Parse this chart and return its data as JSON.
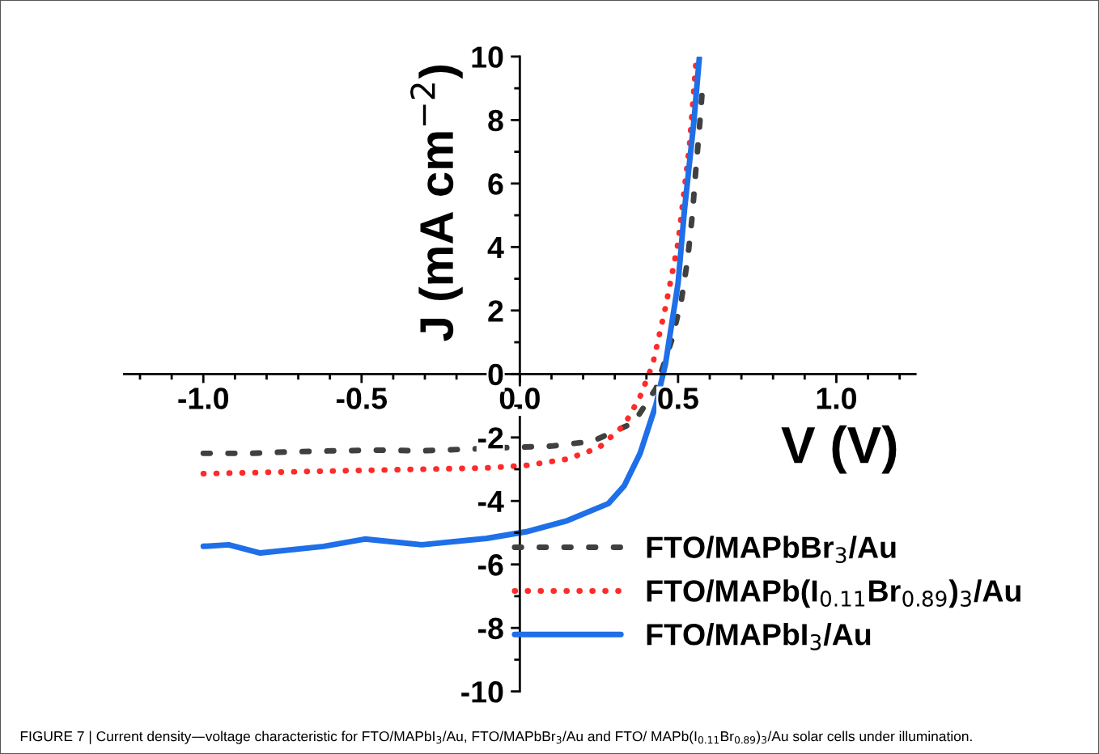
{
  "chart_data": {
    "type": "line",
    "xlabel": "V (V)",
    "ylabel": "J (mA cm$^{−2}$)",
    "xlim": [
      -1.25,
      1.25
    ],
    "ylim": [
      -10,
      10
    ],
    "xticks": [
      {
        "value": -1.0,
        "label": "-1.0"
      },
      {
        "value": -0.5,
        "label": "-0.5"
      },
      {
        "value": 0.0,
        "label": "0.0"
      },
      {
        "value": 0.5,
        "label": "0.5"
      },
      {
        "value": 1.0,
        "label": "1.0"
      }
    ],
    "yticks": [
      {
        "value": -10,
        "label": "-10"
      },
      {
        "value": -8,
        "label": "-8"
      },
      {
        "value": -6,
        "label": "-6"
      },
      {
        "value": -4,
        "label": "-4"
      },
      {
        "value": -2,
        "label": "-2"
      },
      {
        "value": 0,
        "label": "0"
      },
      {
        "value": 2,
        "label": "2"
      },
      {
        "value": 4,
        "label": "4"
      },
      {
        "value": 6,
        "label": "6"
      },
      {
        "value": 8,
        "label": "8"
      },
      {
        "value": 10,
        "label": "10"
      }
    ],
    "grid": false,
    "legend": "bottom right",
    "marker": "none",
    "series": [
      {
        "name": "FTO/MAPbBr$_{3}$/Au",
        "color": "#404040",
        "line_style": "dashed",
        "x": [
          -1.0,
          -0.85,
          -0.72,
          -0.59,
          -0.44,
          -0.31,
          -0.17,
          -0.04,
          0.1,
          0.23,
          0.36,
          0.43,
          0.48,
          0.51,
          0.53,
          0.545,
          0.555,
          0.567,
          0.577
        ],
        "values": [
          -2.5,
          -2.5,
          -2.45,
          -2.42,
          -2.4,
          -2.42,
          -2.37,
          -2.32,
          -2.27,
          -2.12,
          -1.53,
          -0.46,
          1.07,
          2.3,
          3.6,
          5.0,
          6.3,
          7.7,
          9.0
        ]
      },
      {
        "name": "FTO/MAPb(I$_{0.11}$Br$_{0.89}$)$_{3}$/Au",
        "color": "#ff2a2a",
        "line_style": "dotted",
        "x": [
          -1.0,
          -0.62,
          -0.36,
          -0.105,
          0.02,
          0.15,
          0.25,
          0.33,
          0.38,
          0.42,
          0.46,
          0.5,
          0.536,
          0.556
        ],
        "values": [
          -3.14,
          -3.06,
          -3.01,
          -2.96,
          -2.88,
          -2.68,
          -2.32,
          -1.61,
          -0.71,
          0.31,
          2.09,
          4.13,
          7.19,
          9.74
        ]
      },
      {
        "name": "FTO/MAPbI$_{3}$/Au",
        "color": "#1e6fe8",
        "line_style": "solid",
        "x": [
          -1.0,
          -0.92,
          -0.82,
          -0.62,
          -0.49,
          -0.31,
          -0.105,
          0.02,
          0.15,
          0.28,
          0.33,
          0.38,
          0.43,
          0.46,
          0.5,
          0.52,
          0.55,
          0.567
        ],
        "values": [
          -5.43,
          -5.38,
          -5.64,
          -5.43,
          -5.2,
          -5.38,
          -5.18,
          -4.97,
          -4.62,
          -4.08,
          -3.52,
          -2.5,
          -0.97,
          0.31,
          2.86,
          5.15,
          7.96,
          9.95
        ]
      }
    ],
    "annotations": [
      "FIGURE 7 | Current density—voltage characteristic for FTO/MAPbI$_{3}$/Au, FTO/MAPbBr$_{3}$/Au and FTO/ MAPb(I$_{0.11}$Br$_{0.89}$)$_{3}$/Au solar cells under illumination."
    ]
  }
}
